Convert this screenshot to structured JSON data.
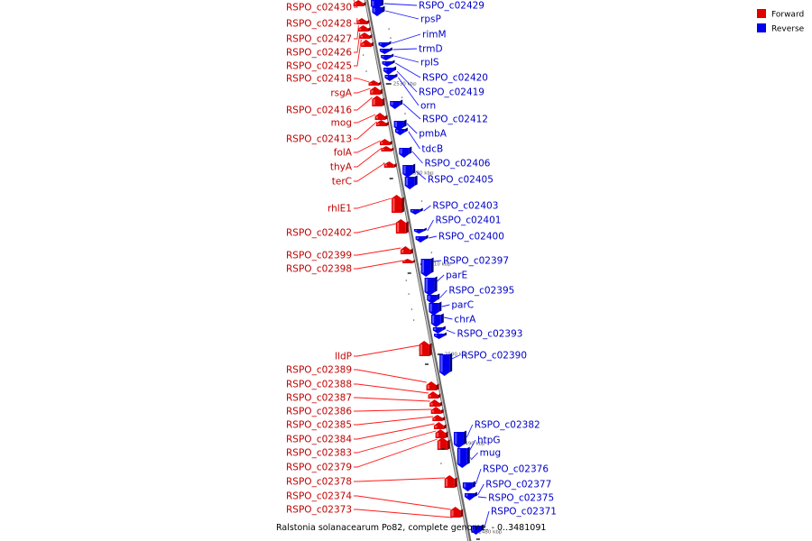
{
  "caption": "Ralstonia solanacearum Po82, complete genome. - 0..3481091",
  "legend": {
    "forward": {
      "label": "Forward",
      "color": "#e00000"
    },
    "reverse": {
      "label": "Reverse",
      "color": "#0000ee"
    }
  },
  "ticks": [
    "2530 kbp",
    "2520 kbp",
    "2510 kbp",
    "2500 kbp",
    "2490 kbp",
    "2480 kbp"
  ],
  "forward_genes": [
    "RSPO_c02430",
    "RSPO_c02428",
    "RSPO_c02427",
    "RSPO_c02426",
    "RSPO_c02425",
    "RSPO_c02418",
    "rsgA",
    "RSPO_c02416",
    "mog",
    "RSPO_c02413",
    "folA",
    "thyA",
    "terC",
    "rhlE1",
    "RSPO_c02402",
    "RSPO_c02399",
    "RSPO_c02398",
    "lldP",
    "RSPO_c02389",
    "RSPO_c02388",
    "RSPO_c02387",
    "RSPO_c02386",
    "RSPO_c02385",
    "RSPO_c02384",
    "RSPO_c02383",
    "RSPO_c02379",
    "RSPO_c02378",
    "RSPO_c02374",
    "RSPO_c02373"
  ],
  "reverse_genes": [
    "RSPO_c02429",
    "rpsP",
    "rimM",
    "trmD",
    "rplS",
    "RSPO_c02420",
    "RSPO_c02419",
    "orn",
    "RSPO_c02412",
    "pmbA",
    "tdcB",
    "RSPO_c02406",
    "RSPO_c02405",
    "RSPO_c02403",
    "RSPO_c02401",
    "RSPO_c02400",
    "RSPO_c02397",
    "parE",
    "RSPO_c02395",
    "parC",
    "chrA",
    "RSPO_c02393",
    "RSPO_c02390",
    "RSPO_c02382",
    "htpG",
    "mug",
    "RSPO_c02376",
    "RSPO_c02377",
    "RSPO_c02375",
    "RSPO_c02371"
  ]
}
